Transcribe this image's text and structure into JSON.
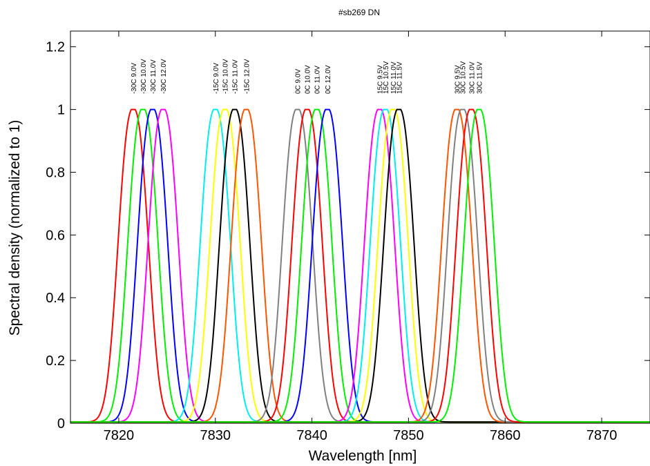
{
  "chart_data": {
    "type": "line",
    "title": "#sb269 DN",
    "xlabel": "Wavelength [nm]",
    "ylabel": "Spectral density (normalized to 1)",
    "xlim": [
      7815,
      7875
    ],
    "ylim": [
      0,
      1.25
    ],
    "xticks": [
      7820,
      7830,
      7840,
      7850,
      7860,
      7870
    ],
    "yticks": [
      0,
      0.2,
      0.4,
      0.6,
      0.8,
      1,
      1.2
    ],
    "xtick_labels": [
      "7820",
      "7830",
      "7840",
      "7850",
      "7860",
      "7870"
    ],
    "ytick_labels": [
      "0",
      "0.2",
      "0.4",
      "0.6",
      "0.8",
      "1",
      "1.2"
    ],
    "grid": false,
    "legend": "none",
    "peak_width_nm": 1.5,
    "series": [
      {
        "name": "-30C 9.0V",
        "peak": 7821.5,
        "color": "#ff0000"
      },
      {
        "name": "-30C 10.0V",
        "peak": 7822.5,
        "color": "#00ee00"
      },
      {
        "name": "-30C 11.0V",
        "peak": 7823.5,
        "color": "#0000ff"
      },
      {
        "name": "-30C 12.0V",
        "peak": 7824.6,
        "color": "#ff00ff"
      },
      {
        "name": "-15C 9.0V",
        "peak": 7830.0,
        "color": "#00eeee"
      },
      {
        "name": "-15C 10.0V",
        "peak": 7831.0,
        "color": "#ffff00"
      },
      {
        "name": "-15C 11.0V",
        "peak": 7832.0,
        "color": "#000000"
      },
      {
        "name": "-15C 12.0V",
        "peak": 7833.2,
        "color": "#ff5500"
      },
      {
        "name": "0C 9.0V",
        "peak": 7838.5,
        "color": "#808080"
      },
      {
        "name": "0C 10.0V",
        "peak": 7839.5,
        "color": "#ff0000"
      },
      {
        "name": "0C 11.0V",
        "peak": 7840.5,
        "color": "#00ee00"
      },
      {
        "name": "0C 12.0V",
        "peak": 7841.6,
        "color": "#0000ff"
      },
      {
        "name": "15C 9.5V",
        "peak": 7847.0,
        "color": "#ff00ff"
      },
      {
        "name": "15C 10.5V",
        "peak": 7847.6,
        "color": "#00eeee"
      },
      {
        "name": "15C 11.0V",
        "peak": 7848.4,
        "color": "#ffff00"
      },
      {
        "name": "15C 11.5V",
        "peak": 7849.0,
        "color": "#000000"
      },
      {
        "name": "30C 9.5V",
        "peak": 7855.0,
        "color": "#ff5500"
      },
      {
        "name": "30C 10.5V",
        "peak": 7855.6,
        "color": "#808080"
      },
      {
        "name": "30C 11.0V",
        "peak": 7856.5,
        "color": "#ff0000"
      },
      {
        "name": "30C 11.5V",
        "peak": 7857.3,
        "color": "#00ee00"
      }
    ]
  }
}
